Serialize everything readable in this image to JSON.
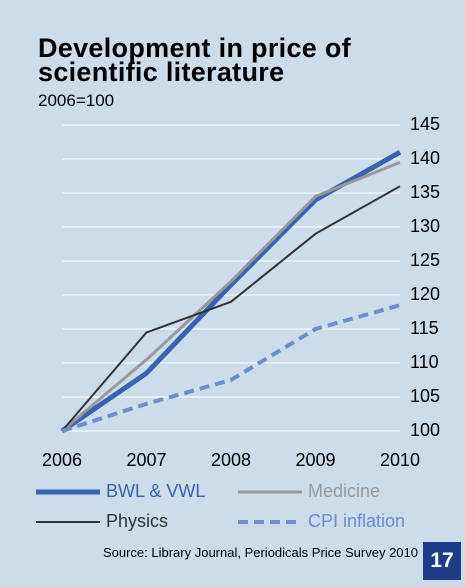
{
  "chart_data": {
    "type": "line",
    "title": "Development in price of scientific literature",
    "subtitle": "2006=100",
    "source": "Source: Library Journal, Periodicals Price Survey 2010",
    "page_number": "17",
    "x": [
      2006,
      2007,
      2008,
      2009,
      2010
    ],
    "xlim": [
      2006,
      2010
    ],
    "xticks": [
      2006,
      2007,
      2008,
      2009,
      2010
    ],
    "ylim": [
      100,
      145
    ],
    "yticks": [
      100,
      105,
      110,
      115,
      120,
      125,
      130,
      135,
      140,
      145
    ],
    "grid": true,
    "series": [
      {
        "name": "BWL & VWL",
        "color": "#3a62b0",
        "line_width": 5,
        "dashed": false,
        "values": [
          100,
          108.5,
          121.5,
          134,
          141
        ]
      },
      {
        "name": "Medicine",
        "color": "#999999",
        "line_width": 3,
        "dashed": false,
        "values": [
          100,
          110.5,
          122,
          134.5,
          139.5
        ]
      },
      {
        "name": "Physics",
        "color": "#333333",
        "line_width": 2,
        "dashed": false,
        "values": [
          100,
          114.5,
          119,
          129,
          136
        ]
      },
      {
        "name": "CPI inflation",
        "color": "#6b8fcb",
        "line_width": 4,
        "dashed": true,
        "values": [
          100,
          104,
          107.5,
          115,
          118.5
        ]
      }
    ]
  }
}
